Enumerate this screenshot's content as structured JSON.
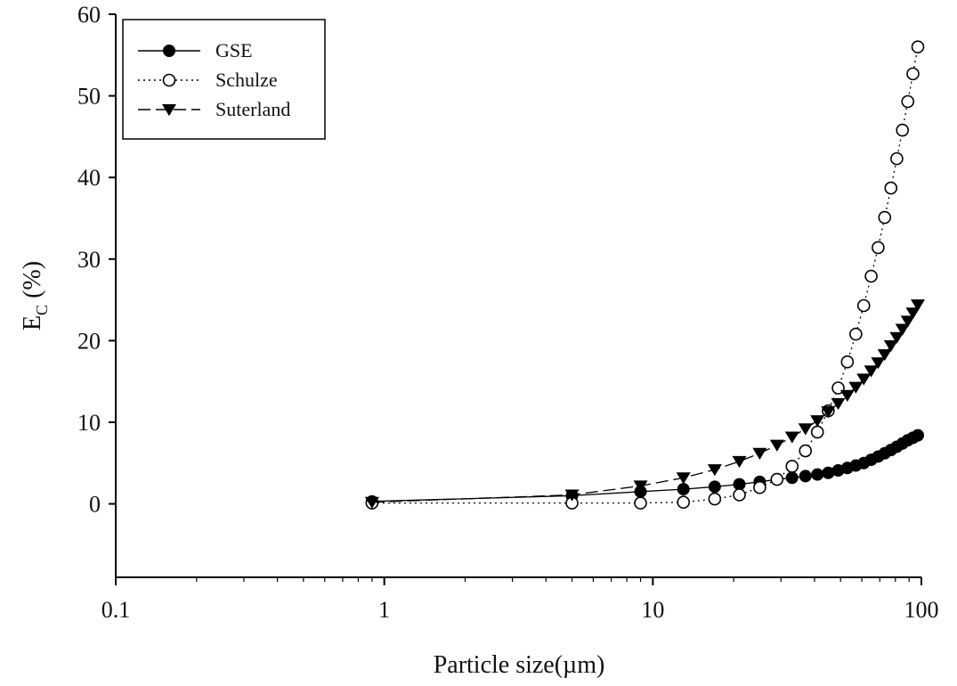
{
  "chart_data": {
    "type": "scatter",
    "xscale": "log",
    "xlim": [
      0.1,
      100
    ],
    "ylim": [
      -9,
      60
    ],
    "xlabel": "Particle size(µm)",
    "ylabel_main": "E",
    "ylabel_sub": "C",
    "ylabel_rest": " (%)",
    "xticks": [
      0.1,
      1,
      10,
      100
    ],
    "xtick_labels": [
      "0.1",
      "1",
      "10",
      "100"
    ],
    "yticks": [
      0,
      10,
      20,
      30,
      40,
      50,
      60
    ],
    "ytick_labels": [
      "0",
      "10",
      "20",
      "30",
      "40",
      "50",
      "60"
    ],
    "legend_position": "top-left",
    "grid": false,
    "series": [
      {
        "name": "GSE",
        "marker": "filled-circle",
        "line": "solid",
        "color": "#000000",
        "x": [
          0.9,
          5,
          9,
          13,
          17,
          21,
          25,
          29,
          33,
          37,
          41,
          45,
          49,
          53,
          57,
          61,
          65,
          69,
          73,
          77,
          81,
          85,
          89,
          93,
          97
        ],
        "y": [
          0.3,
          1.0,
          1.5,
          1.8,
          2.1,
          2.4,
          2.7,
          3.0,
          3.2,
          3.4,
          3.6,
          3.8,
          4.1,
          4.4,
          4.7,
          5.0,
          5.4,
          5.8,
          6.2,
          6.6,
          7.0,
          7.4,
          7.8,
          8.1,
          8.4
        ]
      },
      {
        "name": "Schulze",
        "marker": "open-circle",
        "line": "dotted",
        "color": "#000000",
        "x": [
          0.9,
          5,
          9,
          13,
          17,
          21,
          25,
          29,
          33,
          37,
          41,
          45,
          49,
          53,
          57,
          61,
          65,
          69,
          73,
          77,
          81,
          85,
          89,
          93,
          97
        ],
        "y": [
          0.1,
          0.1,
          0.1,
          0.2,
          0.6,
          1.1,
          2.0,
          3.0,
          4.6,
          6.5,
          8.8,
          11.4,
          14.2,
          17.4,
          20.8,
          24.3,
          27.9,
          31.4,
          35.1,
          38.7,
          42.3,
          45.8,
          49.3,
          52.7,
          56.0
        ]
      },
      {
        "name": "Suterland",
        "marker": "filled-triangle-down",
        "line": "dashed",
        "color": "#000000",
        "x": [
          0.9,
          5,
          9,
          13,
          17,
          21,
          25,
          29,
          33,
          37,
          41,
          45,
          49,
          53,
          57,
          61,
          65,
          69,
          73,
          77,
          81,
          85,
          89,
          93,
          97
        ],
        "y": [
          0.2,
          1.1,
          2.2,
          3.2,
          4.2,
          5.2,
          6.2,
          7.2,
          8.2,
          9.2,
          10.2,
          11.3,
          12.3,
          13.3,
          14.3,
          15.3,
          16.3,
          17.3,
          18.3,
          19.4,
          20.4,
          21.4,
          22.4,
          23.4,
          24.4
        ]
      }
    ]
  }
}
